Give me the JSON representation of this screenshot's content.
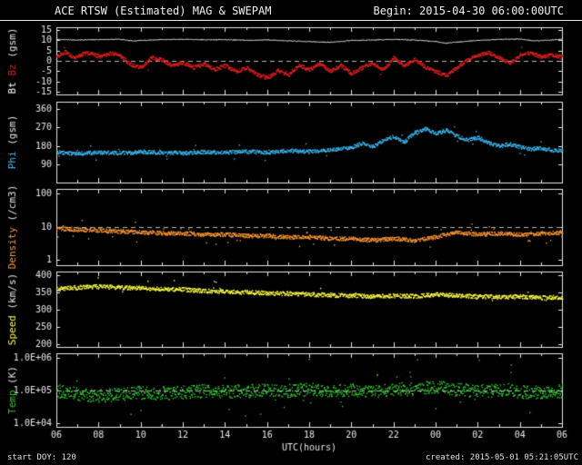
{
  "header": {
    "title": "ACE RTSW (Estimated) MAG & SWEPAM",
    "begin": "Begin: 2015-04-30 06:00:00UTC"
  },
  "footer": {
    "start_doy": "start DOY: 120",
    "created": "created: 2015-05-01 05:21:05UTC"
  },
  "colors": {
    "background": "#000000",
    "frame": "#e8e8e8",
    "label": "#e8e8e8",
    "dashed": "#bbbbbb",
    "bt": "#ffffff",
    "bz": "#e02020",
    "phi": "#3bb8f0",
    "density": "#ff9933",
    "speed": "#ffff44",
    "temp": "#2ecc2e"
  },
  "chart_data": {
    "type": "scatter",
    "title": "ACE RTSW (Estimated) MAG & SWEPAM",
    "begin_label": "Begin: 2015-04-30 06:00:00UTC",
    "x": {
      "label": "UTC(hours)",
      "range": [
        6,
        30
      ],
      "ticks": [
        6,
        8,
        10,
        12,
        14,
        16,
        18,
        20,
        22,
        24,
        26,
        28,
        30
      ],
      "tick_labels": [
        "06",
        "08",
        "10",
        "12",
        "14",
        "16",
        "18",
        "20",
        "22",
        "00",
        "02",
        "04",
        "06"
      ]
    },
    "panels": [
      {
        "name": "bt-bz",
        "ylabel_segments": [
          {
            "text": "Bt ",
            "color_key": "bt"
          },
          {
            "text": "Bz",
            "color_key": "bz"
          },
          {
            "text": " (gsm)",
            "color_key": "label"
          }
        ],
        "yscale": "linear",
        "yrange": [
          -15,
          15
        ],
        "yticks": [
          15,
          10,
          5,
          0,
          -5,
          -10,
          -15
        ],
        "ytick_labels": [
          "15",
          "10",
          "5",
          "0",
          "-5",
          "-10",
          "-15"
        ],
        "dashed_y": 0,
        "series": [
          {
            "name": "Bt",
            "color_key": "bt",
            "style": "line",
            "jitter": 0.18,
            "skip": 0,
            "anchors": [
              [
                6,
                10.4
              ],
              [
                7,
                10.1
              ],
              [
                8,
                10.3
              ],
              [
                9,
                10.5
              ],
              [
                9.7,
                9.6
              ],
              [
                10,
                9.9
              ],
              [
                11,
                10.3
              ],
              [
                12,
                10.5
              ],
              [
                13,
                10.2
              ],
              [
                14,
                10.3
              ],
              [
                15,
                10.0
              ],
              [
                16,
                10.2
              ],
              [
                17,
                9.7
              ],
              [
                18,
                9.4
              ],
              [
                19,
                9.0
              ],
              [
                19.5,
                9.4
              ],
              [
                20,
                9.9
              ],
              [
                21,
                10.1
              ],
              [
                22,
                10.4
              ],
              [
                23,
                10.1
              ],
              [
                24,
                9.4
              ],
              [
                24.5,
                8.6
              ],
              [
                25,
                9.1
              ],
              [
                26,
                9.9
              ],
              [
                27,
                10.4
              ],
              [
                28,
                10.6
              ],
              [
                28.7,
                9.7
              ],
              [
                29.3,
                10.0
              ],
              [
                30,
                10.5
              ]
            ]
          },
          {
            "name": "Bz",
            "color_key": "bz",
            "style": "dots",
            "jitter": 0.9,
            "skip": 0.05,
            "outlier_rate": 0.01,
            "anchors": [
              [
                6,
                2.5
              ],
              [
                6.4,
                4.5
              ],
              [
                6.8,
                1.5
              ],
              [
                7.2,
                3.5
              ],
              [
                7.6,
                4.2
              ],
              [
                8,
                2.2
              ],
              [
                8.5,
                3.8
              ],
              [
                9,
                2.8
              ],
              [
                9.5,
                -1.5
              ],
              [
                10,
                -3
              ],
              [
                10.5,
                1.8
              ],
              [
                11,
                0.8
              ],
              [
                11.5,
                -2.2
              ],
              [
                12,
                -0.5
              ],
              [
                12.5,
                -3
              ],
              [
                13,
                -1.2
              ],
              [
                13.5,
                -4
              ],
              [
                14,
                -2
              ],
              [
                14.5,
                -5
              ],
              [
                15,
                -3
              ],
              [
                15.5,
                -6.5
              ],
              [
                16,
                -8
              ],
              [
                16.5,
                -4.5
              ],
              [
                17,
                -6.5
              ],
              [
                17.5,
                -2
              ],
              [
                18,
                -4
              ],
              [
                18.5,
                -1
              ],
              [
                19,
                -4.8
              ],
              [
                19.5,
                -2
              ],
              [
                20,
                -6
              ],
              [
                20.5,
                -3
              ],
              [
                21,
                -1
              ],
              [
                21.5,
                -4.2
              ],
              [
                22,
                1.8
              ],
              [
                22.5,
                -2.2
              ],
              [
                23,
                1.2
              ],
              [
                23.5,
                -3
              ],
              [
                24,
                -5
              ],
              [
                24.5,
                -6.8
              ],
              [
                25,
                -3
              ],
              [
                25.5,
                0.8
              ],
              [
                26,
                3
              ],
              [
                26.5,
                4.2
              ],
              [
                27,
                2
              ],
              [
                27.5,
                -1.2
              ],
              [
                28,
                3
              ],
              [
                28.5,
                4.2
              ],
              [
                29,
                2.2
              ],
              [
                29.5,
                3.2
              ],
              [
                30,
                2
              ]
            ]
          }
        ]
      },
      {
        "name": "phi",
        "ylabel_segments": [
          {
            "text": "Phi",
            "color_key": "phi"
          },
          {
            "text": " (gsm)",
            "color_key": "label"
          }
        ],
        "yscale": "linear",
        "yrange": [
          0,
          360
        ],
        "yticks": [
          360,
          270,
          180,
          90
        ],
        "ytick_labels": [
          "360",
          "270",
          "180",
          "90"
        ],
        "series": [
          {
            "name": "Phi",
            "color_key": "phi",
            "style": "dots",
            "jitter": 9,
            "skip": 0.12,
            "outlier_rate": 0.02,
            "anchors": [
              [
                6,
                150
              ],
              [
                7,
                144
              ],
              [
                8,
                150
              ],
              [
                9,
                147
              ],
              [
                10,
                152
              ],
              [
                11,
                149
              ],
              [
                12,
                147
              ],
              [
                13,
                152
              ],
              [
                14,
                150
              ],
              [
                15,
                155
              ],
              [
                16,
                150
              ],
              [
                17,
                159
              ],
              [
                18,
                154
              ],
              [
                19,
                164
              ],
              [
                20,
                174
              ],
              [
                20.5,
                194
              ],
              [
                21,
                179
              ],
              [
                21.5,
                209
              ],
              [
                22,
                228
              ],
              [
                22.5,
                200
              ],
              [
                23,
                248
              ],
              [
                23.5,
                265
              ],
              [
                24,
                244
              ],
              [
                24.5,
                258
              ],
              [
                25,
                230
              ],
              [
                25.5,
                210
              ],
              [
                26,
                224
              ],
              [
                26.5,
                196
              ],
              [
                27,
                181
              ],
              [
                27.5,
                190
              ],
              [
                28,
                176
              ],
              [
                28.5,
                166
              ],
              [
                29,
                171
              ],
              [
                29.5,
                161
              ],
              [
                30,
                160
              ]
            ]
          }
        ]
      },
      {
        "name": "density",
        "ylabel_segments": [
          {
            "text": "Density",
            "color_key": "density"
          },
          {
            "text": " (/cm3)",
            "color_key": "label"
          }
        ],
        "yscale": "log",
        "yrange": [
          1,
          100
        ],
        "yticks": [
          100,
          10,
          1
        ],
        "ytick_labels": [
          "100",
          "10",
          "1"
        ],
        "dashed_y": 10,
        "series": [
          {
            "name": "Density",
            "color_key": "density",
            "style": "dots",
            "jitter": 0.06,
            "skip": 0.12,
            "outlier_rate": 0.03,
            "anchors": [
              [
                6,
                9
              ],
              [
                7,
                8.5
              ],
              [
                8,
                8
              ],
              [
                9,
                7.5
              ],
              [
                10,
                7
              ],
              [
                11,
                6.5
              ],
              [
                12,
                6.5
              ],
              [
                13,
                6
              ],
              [
                14,
                6
              ],
              [
                15,
                5.5
              ],
              [
                16,
                5.5
              ],
              [
                17,
                5
              ],
              [
                18,
                5
              ],
              [
                19,
                4.5
              ],
              [
                20,
                4.5
              ],
              [
                21,
                4
              ],
              [
                22,
                4.5
              ],
              [
                23,
                4
              ],
              [
                24,
                5
              ],
              [
                25,
                7
              ],
              [
                26,
                6
              ],
              [
                27,
                6.5
              ],
              [
                28,
                6
              ],
              [
                29,
                6.5
              ],
              [
                30,
                7
              ]
            ]
          }
        ]
      },
      {
        "name": "speed",
        "ylabel_segments": [
          {
            "text": "Speed",
            "color_key": "speed"
          },
          {
            "text": " (km/s)",
            "color_key": "label"
          }
        ],
        "yscale": "linear",
        "yrange": [
          200,
          400
        ],
        "yticks": [
          400,
          350,
          300,
          250,
          200
        ],
        "ytick_labels": [
          "400",
          "350",
          "300",
          "250",
          "200"
        ],
        "series": [
          {
            "name": "Speed",
            "color_key": "speed",
            "style": "dots",
            "jitter": 6,
            "skip": 0.12,
            "outlier_rate": 0.015,
            "anchors": [
              [
                6,
                362
              ],
              [
                7,
                366
              ],
              [
                8,
                368
              ],
              [
                9,
                366
              ],
              [
                10,
                364
              ],
              [
                11,
                362
              ],
              [
                12,
                360
              ],
              [
                13,
                356
              ],
              [
                14,
                354
              ],
              [
                15,
                352
              ],
              [
                16,
                350
              ],
              [
                17,
                348
              ],
              [
                18,
                346
              ],
              [
                19,
                344
              ],
              [
                20,
                342
              ],
              [
                21,
                340
              ],
              [
                22,
                342
              ],
              [
                23,
                340
              ],
              [
                24,
                346
              ],
              [
                25,
                342
              ],
              [
                26,
                340
              ],
              [
                27,
                338
              ],
              [
                28,
                340
              ],
              [
                29,
                336
              ],
              [
                30,
                338
              ]
            ]
          }
        ]
      },
      {
        "name": "temp",
        "ylabel_segments": [
          {
            "text": "Temp",
            "color_key": "temp"
          },
          {
            "text": " (K)",
            "color_key": "label"
          }
        ],
        "yscale": "log",
        "yrange": [
          10000,
          1000000
        ],
        "yticks": [
          1000000,
          100000,
          10000
        ],
        "ytick_labels": [
          "1.0E+06",
          "1.0E+05",
          "1.0E+04"
        ],
        "dashed_y": 100000,
        "series": [
          {
            "name": "Temp",
            "color_key": "temp",
            "style": "dots",
            "jitter": 0.2,
            "skip": 0.1,
            "outlier_rate": 0.04,
            "anchors": [
              [
                6,
                100000
              ],
              [
                7,
                80000
              ],
              [
                8,
                70000
              ],
              [
                9,
                80000
              ],
              [
                10,
                90000
              ],
              [
                11,
                85000
              ],
              [
                12,
                90000
              ],
              [
                13,
                100000
              ],
              [
                14,
                95000
              ],
              [
                15,
                100000
              ],
              [
                16,
                105000
              ],
              [
                17,
                100000
              ],
              [
                18,
                110000
              ],
              [
                19,
                100000
              ],
              [
                20,
                105000
              ],
              [
                21,
                100000
              ],
              [
                22,
                110000
              ],
              [
                23,
                120000
              ],
              [
                24,
                130000
              ],
              [
                25,
                110000
              ],
              [
                26,
                100000
              ],
              [
                27,
                105000
              ],
              [
                28,
                95000
              ],
              [
                29,
                90000
              ],
              [
                30,
                100000
              ]
            ]
          }
        ]
      }
    ]
  }
}
